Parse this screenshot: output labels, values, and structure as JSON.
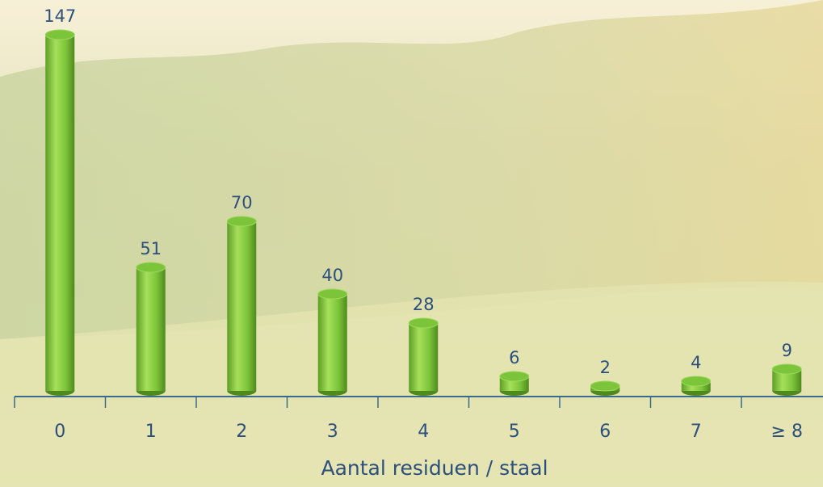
{
  "chart_data": {
    "type": "bar",
    "x_label": "Aantal residuen / staal",
    "categories": [
      "0",
      "1",
      "2",
      "3",
      "4",
      "5",
      "6",
      "7",
      "≥ 8"
    ],
    "values": [
      147,
      51,
      70,
      40,
      28,
      6,
      2,
      4,
      9
    ],
    "color": "#7cc43a"
  }
}
